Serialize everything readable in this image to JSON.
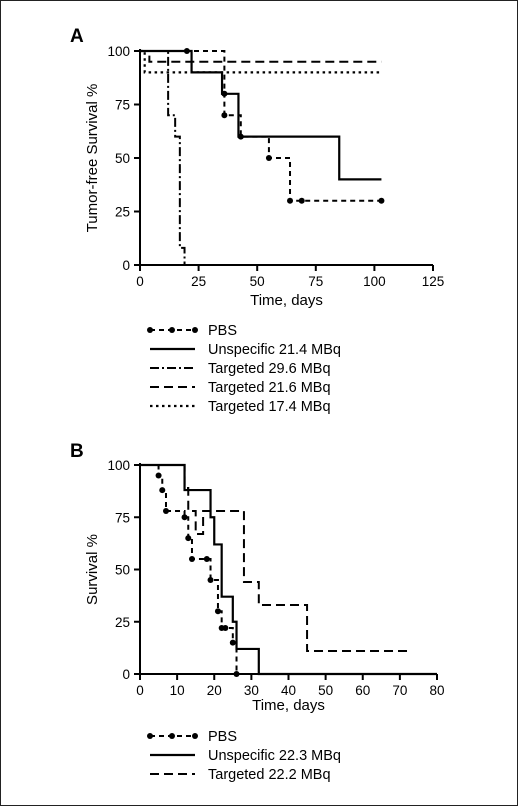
{
  "chart_data": [
    {
      "type": "line",
      "step": true,
      "panel_label": "A",
      "xlabel": "Time, days",
      "ylabel": "Tumor-free Survival %",
      "xlim": [
        0,
        125
      ],
      "ylim": [
        0,
        100
      ],
      "xticks": [
        0,
        25,
        50,
        75,
        100,
        125
      ],
      "yticks": [
        0,
        25,
        50,
        75,
        100
      ],
      "grid": false,
      "legend_position": "below",
      "series": [
        {
          "name": "PBS",
          "style": "dash-dot-markers",
          "x": [
            0,
            20,
            36,
            36,
            43,
            55,
            64,
            69,
            103
          ],
          "y": [
            100,
            100,
            80,
            70,
            60,
            50,
            30,
            30,
            30
          ]
        },
        {
          "name": "Unspecific 21.4 MBq",
          "style": "solid",
          "x": [
            0,
            18,
            22,
            35,
            42,
            85,
            103
          ],
          "y": [
            100,
            100,
            90,
            80,
            60,
            40,
            40
          ]
        },
        {
          "name": "Targeted 29.6 MBq",
          "style": "dash-dot",
          "x": [
            0,
            10,
            12,
            15,
            17,
            19
          ],
          "y": [
            100,
            100,
            70,
            60,
            8,
            0
          ]
        },
        {
          "name": "Targeted 21.6 MBq",
          "style": "dashed",
          "x": [
            0,
            4,
            103
          ],
          "y": [
            100,
            95,
            95
          ]
        },
        {
          "name": "Targeted 17.4 MBq",
          "style": "dotted",
          "x": [
            0,
            2,
            103
          ],
          "y": [
            100,
            90,
            90
          ]
        }
      ]
    },
    {
      "type": "line",
      "step": true,
      "panel_label": "B",
      "xlabel": "Time, days",
      "ylabel": "Survival %",
      "xlim": [
        0,
        80
      ],
      "ylim": [
        0,
        100
      ],
      "xticks": [
        0,
        10,
        20,
        30,
        40,
        50,
        60,
        70,
        80
      ],
      "yticks": [
        0,
        25,
        50,
        75,
        100
      ],
      "grid": false,
      "legend_position": "below",
      "series": [
        {
          "name": "PBS",
          "style": "dash-dot-markers",
          "x": [
            0,
            5,
            6,
            7,
            12,
            13,
            14,
            18,
            19,
            21,
            22,
            23,
            25,
            26
          ],
          "y": [
            100,
            95,
            88,
            78,
            75,
            65,
            55,
            55,
            45,
            30,
            22,
            22,
            15,
            0
          ]
        },
        {
          "name": "Unspecific 22.3 MBq",
          "style": "solid",
          "x": [
            0,
            11,
            12,
            19,
            20,
            22,
            25,
            26,
            32,
            80
          ],
          "y": [
            100,
            100,
            88,
            75,
            62,
            37,
            25,
            12,
            0,
            0
          ]
        },
        {
          "name": "Targeted 22.2 MBq",
          "style": "dashed",
          "x": [
            0,
            11,
            12,
            13,
            15,
            17,
            27,
            28,
            31,
            32,
            45,
            46,
            73
          ],
          "y": [
            100,
            100,
            89,
            78,
            67,
            78,
            78,
            44,
            44,
            33,
            11,
            11,
            11
          ]
        }
      ]
    }
  ]
}
